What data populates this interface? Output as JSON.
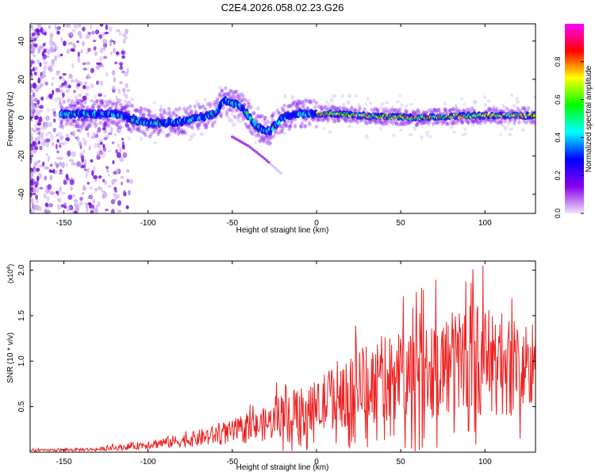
{
  "title": "C2E4.2026.058.02.23.G26",
  "chart_data": [
    {
      "type": "heatmap",
      "title": "C2E4.2026.058.02.23.G26",
      "xlabel": "Height of straight line (km)",
      "ylabel": "Frequency (Hz)",
      "xlim": [
        -170,
        130
      ],
      "ylim": [
        -50,
        49
      ],
      "xticks": [
        -150,
        -100,
        -50,
        0,
        50,
        100
      ],
      "xtick_labels": [
        "-150",
        "-100",
        "-50",
        "0",
        "50",
        "100"
      ],
      "yticks": [
        -40,
        -20,
        0,
        20,
        40
      ],
      "ytick_labels": [
        "-40",
        "-20",
        "0",
        "20",
        "40"
      ],
      "colorbar": {
        "label": "Normalized spectral amplitude",
        "range": [
          0,
          1
        ],
        "ticks": [
          0.0,
          0.2,
          0.4,
          0.6,
          0.8
        ],
        "tick_labels": [
          "0.0",
          "0.2",
          "0.4",
          "0.6",
          "0.8"
        ],
        "colors": [
          "#f2e4fb",
          "#8800ee",
          "#0000ff",
          "#00ffff",
          "#00ff00",
          "#ffff00",
          "#ff0000",
          "#ff00ff"
        ]
      },
      "ridge": {
        "x": [
          -150,
          -120,
          -100,
          -80,
          -60,
          -55,
          -45,
          -35,
          -28,
          -20,
          -10,
          0,
          10,
          30,
          60,
          90,
          130
        ],
        "y": [
          2,
          2,
          -3,
          -2,
          2,
          9,
          6,
          -5,
          -7,
          0,
          2,
          2,
          2,
          1,
          0,
          1,
          1
        ]
      },
      "branch": {
        "x": [
          -50,
          -40,
          -30,
          -20
        ],
        "y": [
          -10,
          -15,
          -22,
          -30
        ]
      }
    },
    {
      "type": "line",
      "xlabel": "Height of straight line (km)",
      "ylabel": "SNR (10 * v/v)",
      "scale_label": "(x10",
      "scale_exponent": "4",
      "xlim": [
        -170,
        130
      ],
      "ylim": [
        0,
        2.1
      ],
      "xticks": [
        -150,
        -100,
        -50,
        0,
        50,
        100
      ],
      "xtick_labels": [
        "-150",
        "-100",
        "-50",
        "0",
        "50",
        "100"
      ],
      "yticks": [
        0.5,
        1.0,
        1.5,
        2.0
      ],
      "ytick_labels": [
        "0.5",
        "1.0",
        "1.5",
        "2.0"
      ],
      "color": "#ee2222",
      "envelope": {
        "x": [
          -170,
          -130,
          -110,
          -100,
          -80,
          -60,
          -40,
          -25,
          -17,
          -10,
          0,
          10,
          20,
          30,
          40,
          50,
          60,
          70,
          80,
          90,
          100,
          110,
          120,
          130
        ],
        "y": [
          0.03,
          0.05,
          0.1,
          0.14,
          0.2,
          0.3,
          0.4,
          0.55,
          0.8,
          0.7,
          0.75,
          1.0,
          1.1,
          1.2,
          1.3,
          1.4,
          1.45,
          1.5,
          1.55,
          1.7,
          1.6,
          1.55,
          1.5,
          1.45
        ]
      }
    }
  ]
}
